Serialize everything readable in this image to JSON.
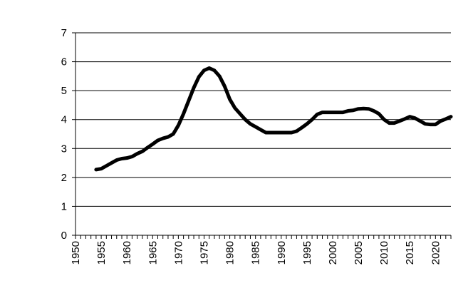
{
  "chart_data": {
    "type": "line",
    "title": "",
    "xlabel": "",
    "ylabel": "",
    "xlim": [
      1950,
      2023
    ],
    "ylim": [
      0,
      7
    ],
    "grid": true,
    "legend": "none",
    "x_tick_labels": [
      "1950",
      "1955",
      "1960",
      "1965",
      "1970",
      "1975",
      "1980",
      "1985",
      "1990",
      "1995",
      "2000",
      "2005",
      "2010",
      "2015",
      "2020"
    ],
    "y_tick_labels": [
      "0",
      "1",
      "2",
      "3",
      "4",
      "5",
      "6",
      "7"
    ],
    "colors": {
      "line": "#000000",
      "grid": "#000000",
      "axis": "#000000",
      "background": "#ffffff"
    },
    "series": [
      {
        "x": [
          1954,
          1955,
          1956,
          1957,
          1958,
          1959,
          1960,
          1961,
          1962,
          1963,
          1964,
          1965,
          1966,
          1967,
          1968,
          1969,
          1970,
          1971,
          1972,
          1973,
          1974,
          1975,
          1976,
          1977,
          1978,
          1979,
          1980,
          1981,
          1982,
          1983,
          1984,
          1985,
          1986,
          1987,
          1988,
          1989,
          1990,
          1991,
          1992,
          1993,
          1994,
          1995,
          1996,
          1997,
          1998,
          1999,
          2000,
          2001,
          2002,
          2003,
          2004,
          2005,
          2006,
          2007,
          2008,
          2009,
          2010,
          2011,
          2012,
          2013,
          2014,
          2015,
          2016,
          2017,
          2018,
          2019,
          2020,
          2021,
          2022,
          2023
        ],
        "values": [
          2.27,
          2.3,
          2.4,
          2.5,
          2.6,
          2.65,
          2.67,
          2.72,
          2.82,
          2.9,
          3.03,
          3.15,
          3.28,
          3.35,
          3.4,
          3.5,
          3.8,
          4.2,
          4.65,
          5.1,
          5.48,
          5.7,
          5.78,
          5.7,
          5.5,
          5.15,
          4.7,
          4.4,
          4.2,
          4.0,
          3.85,
          3.75,
          3.65,
          3.55,
          3.55,
          3.55,
          3.55,
          3.55,
          3.55,
          3.6,
          3.72,
          3.85,
          4.0,
          4.18,
          4.25,
          4.25,
          4.25,
          4.25,
          4.25,
          4.3,
          4.32,
          4.37,
          4.38,
          4.37,
          4.3,
          4.2,
          4.0,
          3.88,
          3.88,
          3.95,
          4.02,
          4.1,
          4.05,
          3.95,
          3.85,
          3.83,
          3.83,
          3.95,
          4.02,
          4.1
        ]
      }
    ]
  }
}
